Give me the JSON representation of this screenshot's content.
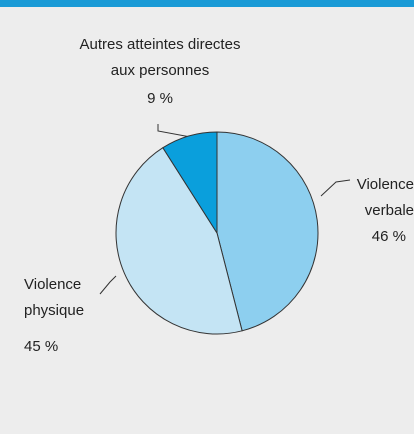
{
  "chart_data": {
    "type": "pie",
    "categories": [
      "Violence verbale",
      "Violence physique",
      "Autres atteintes directes aux personnes"
    ],
    "values": [
      46,
      45,
      9
    ],
    "value_labels": [
      "46 %",
      "45 %",
      "9 %"
    ],
    "colors": [
      "#8dcfef",
      "#c4e4f4",
      "#0a9fdc"
    ]
  }
}
